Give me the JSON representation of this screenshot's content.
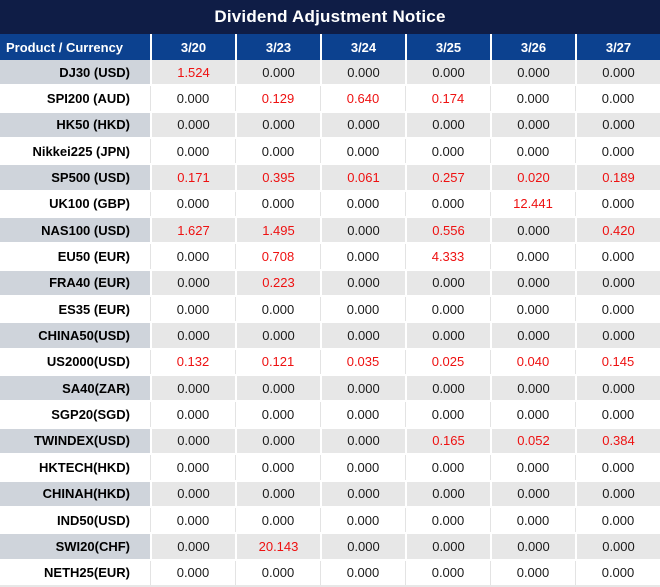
{
  "title": "Dividend Adjustment Notice",
  "chart_data": {
    "type": "table",
    "title": "Dividend Adjustment Notice",
    "columns": [
      "Product / Currency",
      "3/20",
      "3/23",
      "3/24",
      "3/25",
      "3/26",
      "3/27"
    ],
    "value_color_rule": "non-zero dividend values are shown in red, zeros in black",
    "rows": [
      {
        "product": "DJ30 (USD)",
        "values": [
          "1.524",
          "0.000",
          "0.000",
          "0.000",
          "0.000",
          "0.000"
        ]
      },
      {
        "product": "SPI200 (AUD)",
        "values": [
          "0.000",
          "0.129",
          "0.640",
          "0.174",
          "0.000",
          "0.000"
        ]
      },
      {
        "product": "HK50 (HKD)",
        "values": [
          "0.000",
          "0.000",
          "0.000",
          "0.000",
          "0.000",
          "0.000"
        ]
      },
      {
        "product": "Nikkei225 (JPN)",
        "values": [
          "0.000",
          "0.000",
          "0.000",
          "0.000",
          "0.000",
          "0.000"
        ]
      },
      {
        "product": "SP500 (USD)",
        "values": [
          "0.171",
          "0.395",
          "0.061",
          "0.257",
          "0.020",
          "0.189"
        ]
      },
      {
        "product": "UK100 (GBP)",
        "values": [
          "0.000",
          "0.000",
          "0.000",
          "0.000",
          "12.441",
          "0.000"
        ]
      },
      {
        "product": "NAS100 (USD)",
        "values": [
          "1.627",
          "1.495",
          "0.000",
          "0.556",
          "0.000",
          "0.420"
        ]
      },
      {
        "product": "EU50 (EUR)",
        "values": [
          "0.000",
          "0.708",
          "0.000",
          "4.333",
          "0.000",
          "0.000"
        ]
      },
      {
        "product": "FRA40 (EUR)",
        "values": [
          "0.000",
          "0.223",
          "0.000",
          "0.000",
          "0.000",
          "0.000"
        ]
      },
      {
        "product": "ES35 (EUR)",
        "values": [
          "0.000",
          "0.000",
          "0.000",
          "0.000",
          "0.000",
          "0.000"
        ]
      },
      {
        "product": "CHINA50(USD)",
        "values": [
          "0.000",
          "0.000",
          "0.000",
          "0.000",
          "0.000",
          "0.000"
        ]
      },
      {
        "product": "US2000(USD)",
        "values": [
          "0.132",
          "0.121",
          "0.035",
          "0.025",
          "0.040",
          "0.145"
        ]
      },
      {
        "product": "SA40(ZAR)",
        "values": [
          "0.000",
          "0.000",
          "0.000",
          "0.000",
          "0.000",
          "0.000"
        ]
      },
      {
        "product": "SGP20(SGD)",
        "values": [
          "0.000",
          "0.000",
          "0.000",
          "0.000",
          "0.000",
          "0.000"
        ]
      },
      {
        "product": "TWINDEX(USD)",
        "values": [
          "0.000",
          "0.000",
          "0.000",
          "0.165",
          "0.052",
          "0.384"
        ]
      },
      {
        "product": "HKTECH(HKD)",
        "values": [
          "0.000",
          "0.000",
          "0.000",
          "0.000",
          "0.000",
          "0.000"
        ]
      },
      {
        "product": "CHINAH(HKD)",
        "values": [
          "0.000",
          "0.000",
          "0.000",
          "0.000",
          "0.000",
          "0.000"
        ]
      },
      {
        "product": "IND50(USD)",
        "values": [
          "0.000",
          "0.000",
          "0.000",
          "0.000",
          "0.000",
          "0.000"
        ]
      },
      {
        "product": "SWI20(CHF)",
        "values": [
          "0.000",
          "20.143",
          "0.000",
          "0.000",
          "0.000",
          "0.000"
        ]
      },
      {
        "product": "NETH25(EUR)",
        "values": [
          "0.000",
          "0.000",
          "0.000",
          "0.000",
          "0.000",
          "0.000"
        ]
      }
    ]
  },
  "colors": {
    "title_bg": "#0f1d46",
    "header_bg": "#0c418f",
    "header_text": "#ffffff",
    "odd_row_product_bg": "#cfd4db",
    "odd_row_value_bg": "#e7e7e7",
    "even_row_bg": "#ffffff",
    "red_value": "#ee1111",
    "black_value": "#1a1a1a"
  }
}
